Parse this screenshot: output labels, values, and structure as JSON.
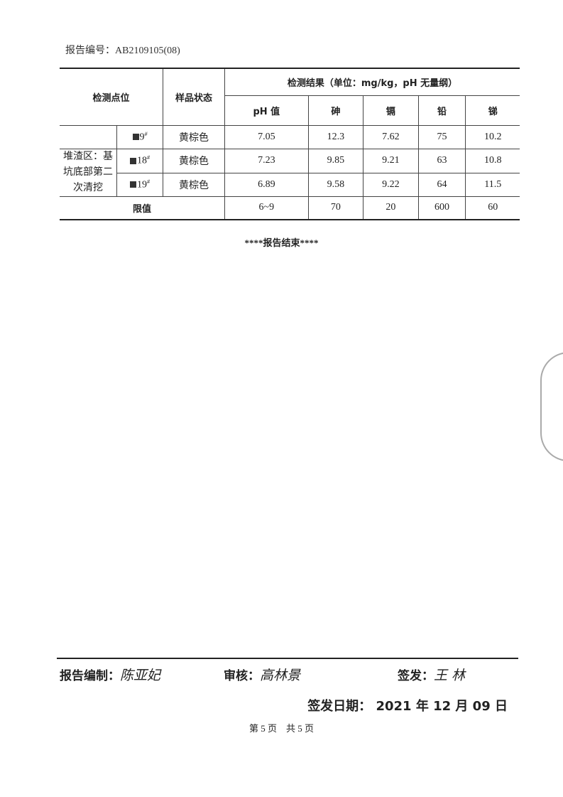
{
  "header": {
    "report_no": "报告编号：AB2109105(08)"
  },
  "table": {
    "col_location": "检测点位",
    "col_state": "样品状态",
    "col_results": "检测结果（单位：mg/kg，pH 无量纲）",
    "analytes": [
      "pH 值",
      "砷",
      "镉",
      "铅",
      "锑"
    ],
    "area": "堆渣区：基坑底部第二次清挖",
    "rows": [
      {
        "point": "9",
        "sup": "#",
        "state": "黄棕色",
        "values": [
          "7.05",
          "12.3",
          "7.62",
          "75",
          "10.2"
        ]
      },
      {
        "point": "18",
        "sup": "#",
        "state": "黄棕色",
        "values": [
          "7.23",
          "9.85",
          "9.21",
          "63",
          "10.8"
        ]
      },
      {
        "point": "19",
        "sup": "#",
        "state": "黄棕色",
        "values": [
          "6.89",
          "9.58",
          "9.22",
          "64",
          "11.5"
        ]
      }
    ],
    "limit_label": "限值",
    "limits": [
      "6~9",
      "70",
      "20",
      "600",
      "60"
    ]
  },
  "end_text": "****报告结束****",
  "footer": {
    "compiled_label": "报告编制：",
    "compiled_sig": "陈亚妃",
    "review_label": "审核：",
    "review_sig": "高林景",
    "issue_label": "签发：",
    "issue_sig": "王 林",
    "date_label": "签发日期：",
    "date": "2021 年 12 月 09 日",
    "page": "第 5 页　共 5 页"
  }
}
